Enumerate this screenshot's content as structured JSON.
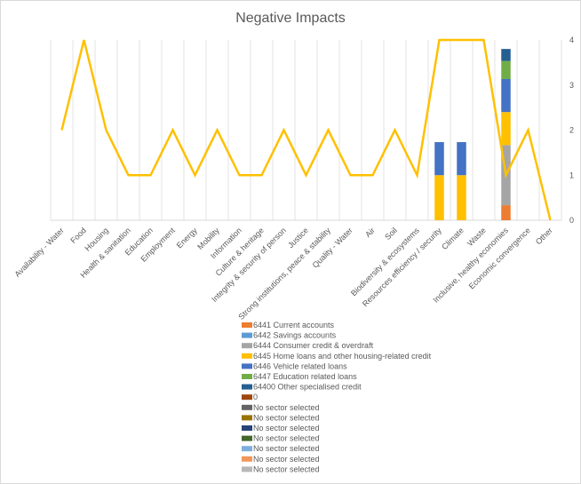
{
  "chart_data": {
    "type": "bar",
    "title": "Negative Impacts",
    "categories": [
      "Availability - Water",
      "Food",
      "Housing",
      "Health & sanitation",
      "Education",
      "Employment",
      "Energy",
      "Mobility",
      "Information",
      "Culture & heritage",
      "Integrity & security of person",
      "Justice",
      "Strong institutions, peace & stability",
      "Quality - Water",
      "Air",
      "Soil",
      "Biodiversity & ecosystems",
      "Resources efficiency / security",
      "Climate",
      "Waste",
      "Inclusive, healthy economies",
      "Economic convergence",
      "Other"
    ],
    "ylim": [
      0,
      4
    ],
    "yticks": [
      "0",
      "1",
      "2",
      "3",
      "4"
    ],
    "line": {
      "color": "#ffc000",
      "values": [
        2,
        4,
        2,
        1,
        1,
        2,
        1,
        2,
        1,
        1,
        2,
        1,
        2,
        1,
        1,
        2,
        1,
        4,
        4,
        4,
        1,
        2,
        0
      ]
    },
    "bar_ylim": [
      0,
      6
    ],
    "series": [
      {
        "name": "6441 Current accounts",
        "color": "#ed7d31",
        "values": [
          0,
          0,
          0,
          0,
          0,
          0,
          0,
          0,
          0,
          0,
          0,
          0,
          0,
          0,
          0,
          0,
          0,
          0,
          0,
          0,
          0.5,
          0,
          0
        ]
      },
      {
        "name": "6442 Savings accounts",
        "color": "#5b9bd5",
        "values": [
          0,
          0,
          0,
          0,
          0,
          0,
          0,
          0,
          0,
          0,
          0,
          0,
          0,
          0,
          0,
          0,
          0,
          0,
          0,
          0,
          0,
          0,
          0
        ]
      },
      {
        "name": "6444 Consumer credit & overdraft",
        "color": "#a5a5a5",
        "values": [
          0,
          0,
          0,
          0,
          0,
          0,
          0,
          0,
          0,
          0,
          0,
          0,
          0,
          0,
          0,
          0,
          0,
          0,
          0,
          0,
          2,
          0,
          0
        ]
      },
      {
        "name": "6445 Home loans and other housing-related credit",
        "color": "#ffc000",
        "values": [
          0,
          0,
          0,
          0,
          0,
          0,
          0,
          0,
          0,
          0,
          0,
          0,
          0,
          0,
          0,
          0,
          0,
          1.5,
          1.5,
          0,
          1.1,
          0,
          0
        ]
      },
      {
        "name": "6446 Vehicle related loans",
        "color": "#4472c4",
        "values": [
          0,
          0,
          0,
          0,
          0,
          0,
          0,
          0,
          0,
          0,
          0,
          0,
          0,
          0,
          0,
          0,
          0,
          1.1,
          1.1,
          0,
          1.1,
          0,
          0
        ]
      },
      {
        "name": "6447 Education related loans",
        "color": "#70ad47",
        "values": [
          0,
          0,
          0,
          0,
          0,
          0,
          0,
          0,
          0,
          0,
          0,
          0,
          0,
          0,
          0,
          0,
          0,
          0,
          0,
          0,
          0.6,
          0,
          0
        ]
      },
      {
        "name": "64400 Other specialised credit",
        "color": "#255e91",
        "values": [
          0,
          0,
          0,
          0,
          0,
          0,
          0,
          0,
          0,
          0,
          0,
          0,
          0,
          0,
          0,
          0,
          0,
          0,
          0,
          0,
          0.4,
          0,
          0
        ]
      }
    ],
    "legend": [
      {
        "name": "6441 Current accounts",
        "color": "#ed7d31"
      },
      {
        "name": "6442 Savings accounts",
        "color": "#5b9bd5"
      },
      {
        "name": "6444 Consumer credit & overdraft",
        "color": "#a5a5a5"
      },
      {
        "name": "6445 Home loans and other housing-related credit",
        "color": "#ffc000"
      },
      {
        "name": "6446 Vehicle related loans",
        "color": "#4472c4"
      },
      {
        "name": "6447 Education related loans",
        "color": "#70ad47"
      },
      {
        "name": "64400 Other specialised credit",
        "color": "#255e91"
      },
      {
        "name": "0",
        "color": "#9e480e"
      },
      {
        "name": "No sector selected",
        "color": "#636363"
      },
      {
        "name": "No sector selected",
        "color": "#997300"
      },
      {
        "name": "No sector selected",
        "color": "#264478"
      },
      {
        "name": "No sector selected",
        "color": "#43682b"
      },
      {
        "name": "No sector selected",
        "color": "#7cafdd"
      },
      {
        "name": "No sector selected",
        "color": "#f1975a"
      },
      {
        "name": "No sector selected",
        "color": "#b7b7b7"
      }
    ],
    "legend_position": "bottom",
    "grid": "vertical"
  }
}
